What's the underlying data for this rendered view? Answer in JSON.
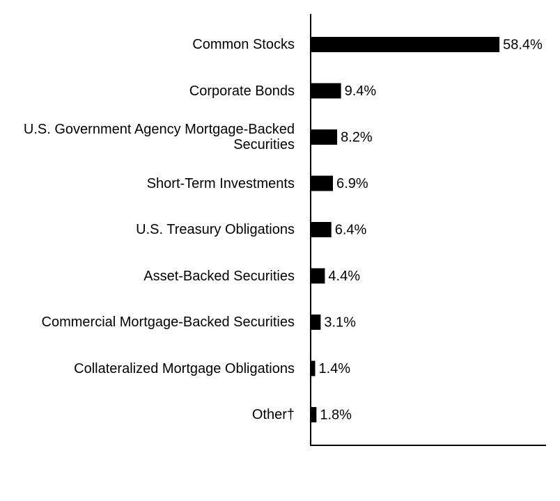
{
  "chart_data": {
    "type": "bar",
    "orientation": "horizontal",
    "categories": [
      "Common Stocks",
      "Corporate Bonds",
      "U.S. Government Agency Mortgage-Backed Securities",
      "Short-Term Investments",
      "U.S. Treasury Obligations",
      "Asset-Backed Securities",
      "Commercial Mortgage-Backed Securities",
      "Collateralized Mortgage Obligations",
      "Other†"
    ],
    "values": [
      58.4,
      9.4,
      8.2,
      6.9,
      6.4,
      4.4,
      3.1,
      1.4,
      1.8
    ],
    "value_labels": [
      "58.4%",
      "9.4%",
      "8.2%",
      "6.9%",
      "6.4%",
      "4.4%",
      "3.1%",
      "1.4%",
      "1.8%"
    ],
    "color": "#000000",
    "xlim": [
      0,
      72.6
    ]
  }
}
